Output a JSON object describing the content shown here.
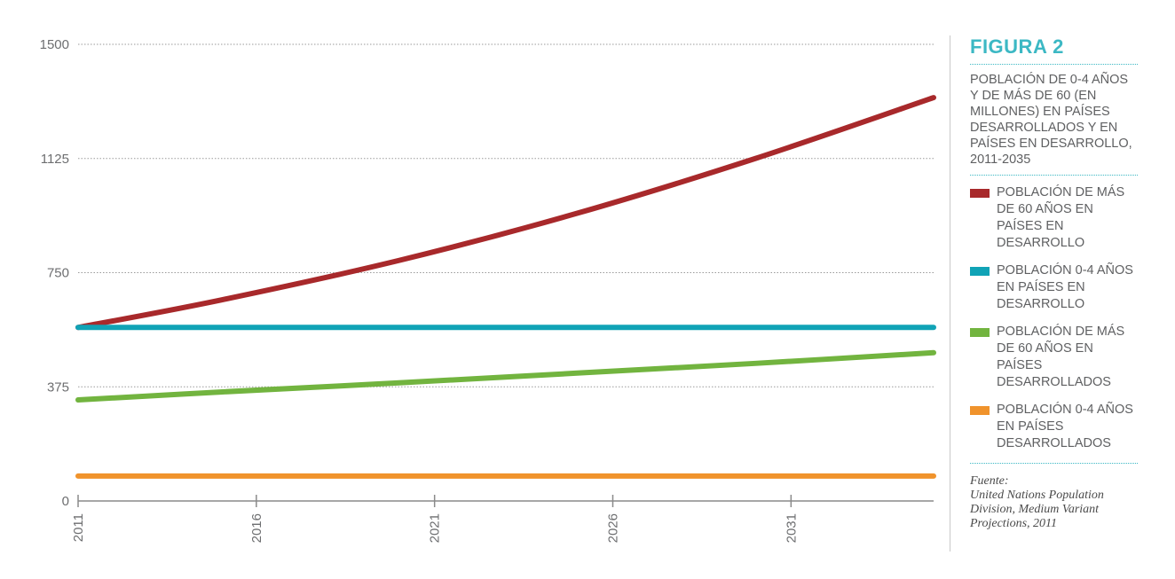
{
  "chart_data": {
    "type": "line",
    "title": "FIGURA 2",
    "subtitle": "POBLACIÓN DE 0-4 AÑOS Y DE MÁS DE 60 (EN MILLONES) EN PAÍSES DESARROLLADOS  Y EN PAÍSES EN DESARROLLO, 2011-2035",
    "xlabel": "",
    "ylabel": "",
    "x": [
      2011,
      2015,
      2020,
      2025,
      2030,
      2035
    ],
    "xticks": [
      "2011",
      "2016",
      "2021",
      "2026",
      "2031"
    ],
    "yticks": [
      "0",
      "375",
      "750",
      "1125",
      "1500"
    ],
    "xlim": [
      2011,
      2035
    ],
    "ylim": [
      0,
      1500
    ],
    "grid": true,
    "legend_position": "right",
    "series": [
      {
        "name": "POBLACIÓN DE MÁS DE 60 AÑOS EN PAÍSES EN DESARROLLO",
        "color": "#a8292b",
        "values": [
          570,
          660,
          790,
          945,
          1125,
          1325
        ]
      },
      {
        "name": "POBLACIÓN 0-4 AÑOS EN PAÍSES EN DESARROLLO",
        "color": "#10a3b6",
        "values": [
          570,
          570,
          570,
          570,
          570,
          570
        ]
      },
      {
        "name": "POBLACIÓN DE MÁS DE 60 AÑOS EN PAÍSES DESARROLLADOS",
        "color": "#72b43f",
        "values": [
          332,
          358,
          388,
          420,
          452,
          487
        ]
      },
      {
        "name": "POBLACIÓN 0-4 AÑOS EN PAÍSES DESARROLLADOS",
        "color": "#f0932c",
        "values": [
          82,
          82,
          82,
          82,
          82,
          82
        ]
      }
    ]
  },
  "source": {
    "label": "Fuente:",
    "text": "United Nations Population Division, Medium Variant Projections, 2011"
  }
}
